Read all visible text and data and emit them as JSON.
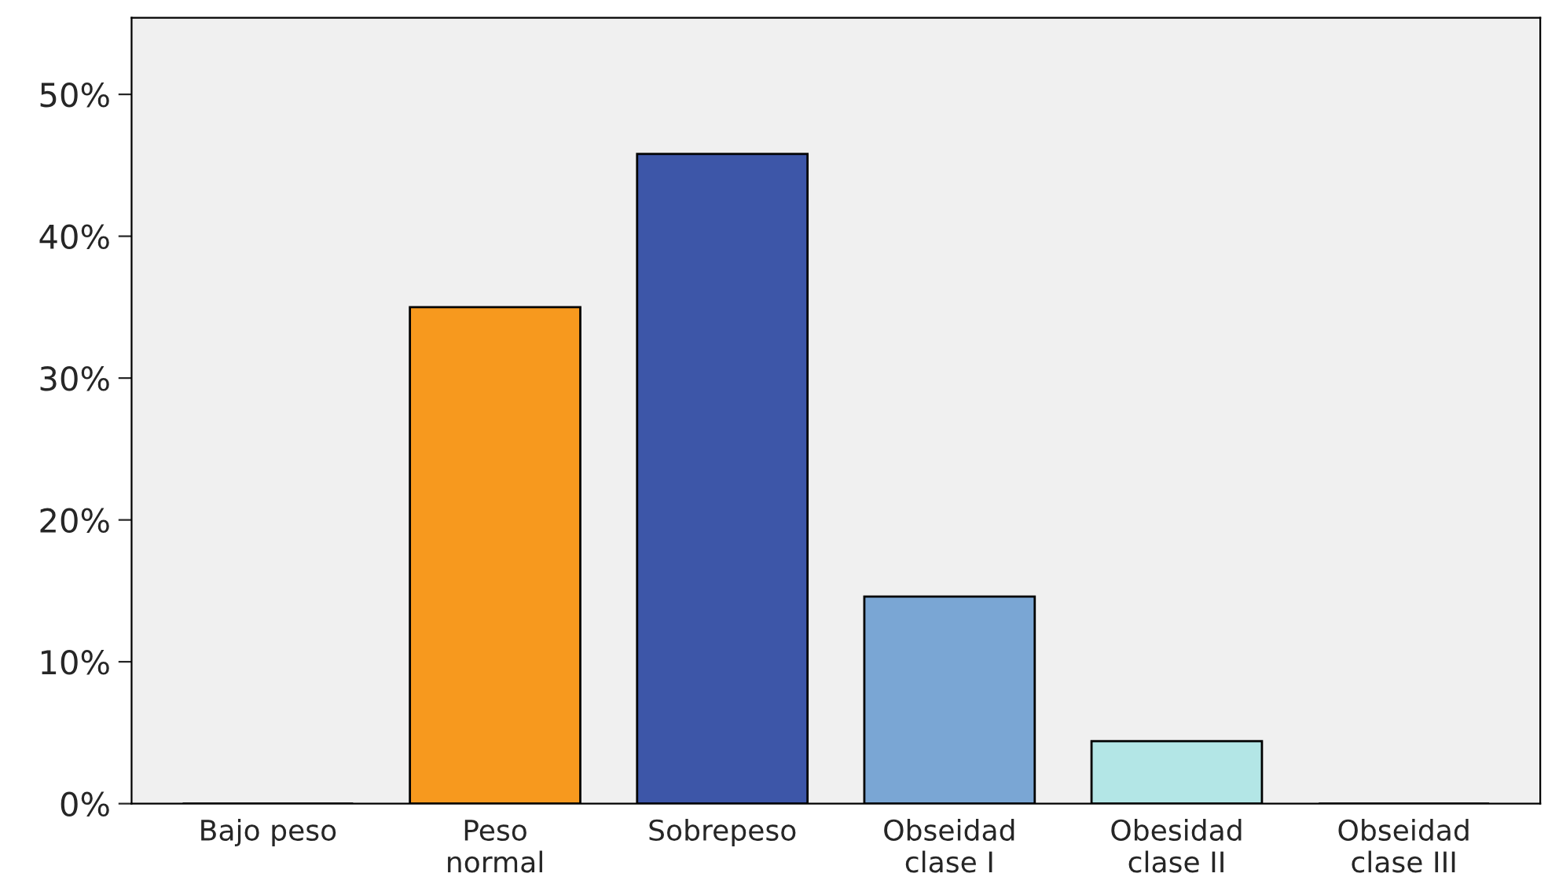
{
  "chart_data": {
    "type": "bar",
    "categories": [
      "Bajo peso",
      "Peso\nnormal",
      "Sobrepeso",
      "Obseidad\nclase I",
      "Obesidad\nclase II",
      "Obseidad\nclase III"
    ],
    "values": [
      0,
      35,
      45.8,
      14.6,
      4.4,
      0
    ],
    "colors": [
      "#000000",
      "#f7991e",
      "#3d56a8",
      "#7aa6d4",
      "#b3e6e6",
      "#000000"
    ],
    "ylim": [
      0,
      55.4
    ],
    "yticks": [
      {
        "value": 0,
        "label": "0%"
      },
      {
        "value": 10,
        "label": "10%"
      },
      {
        "value": 20,
        "label": "20%"
      },
      {
        "value": 30,
        "label": "30%"
      },
      {
        "value": 40,
        "label": "40%"
      },
      {
        "value": 50,
        "label": "50%"
      }
    ],
    "grid": false
  }
}
